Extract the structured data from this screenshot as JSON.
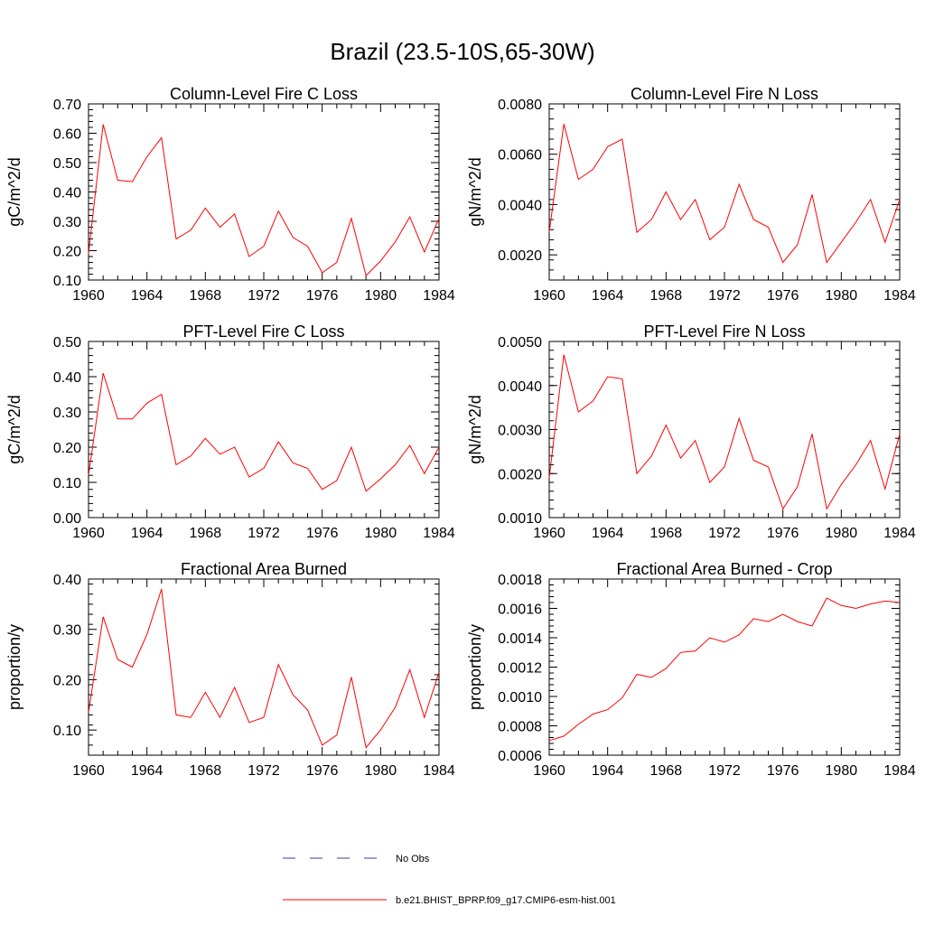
{
  "figure_title": "Brazil (23.5-10S,65-30W)",
  "legend": {
    "items": [
      {
        "label": "No Obs",
        "color": "#3a3aa8",
        "style": "dashed"
      },
      {
        "label": "b.e21.BHIST_BPRP.f09_g17.CMIP6-esm-hist.001",
        "color": "#ff0000",
        "style": "solid"
      }
    ]
  },
  "chart_data": [
    {
      "type": "line",
      "title": "Column-Level Fire C Loss",
      "ylabel": "gC/m^2/d",
      "xlim": [
        1960,
        1984
      ],
      "ylim": [
        0.1,
        0.7
      ],
      "xticks": [
        "1960",
        "1964",
        "1968",
        "1972",
        "1976",
        "1980",
        "1984"
      ],
      "yticks": [
        "0.10",
        "0.20",
        "0.30",
        "0.40",
        "0.50",
        "0.60",
        "0.70"
      ],
      "x": [
        1960,
        1961,
        1962,
        1963,
        1964,
        1965,
        1966,
        1967,
        1968,
        1969,
        1970,
        1971,
        1972,
        1973,
        1974,
        1975,
        1976,
        1977,
        1978,
        1979,
        1980,
        1981,
        1982,
        1983,
        1984
      ],
      "series": [
        {
          "name": "b.e21.BHIST_BPRP.f09_g17.CMIP6-esm-hist.001",
          "color": "#ff0000",
          "values": [
            0.19,
            0.63,
            0.44,
            0.435,
            0.52,
            0.585,
            0.24,
            0.27,
            0.345,
            0.28,
            0.325,
            0.18,
            0.215,
            0.335,
            0.245,
            0.215,
            0.125,
            0.16,
            0.31,
            0.115,
            0.165,
            0.23,
            0.315,
            0.195,
            0.31
          ]
        }
      ]
    },
    {
      "type": "line",
      "title": "Column-Level Fire N Loss",
      "ylabel": "gN/m^2/d",
      "xlim": [
        1960,
        1984
      ],
      "ylim": [
        0.001,
        0.008
      ],
      "xticks": [
        "1960",
        "1964",
        "1968",
        "1972",
        "1976",
        "1980",
        "1984"
      ],
      "yticks": [
        "0.0020",
        "0.0040",
        "0.0060",
        "0.0080"
      ],
      "x": [
        1960,
        1961,
        1962,
        1963,
        1964,
        1965,
        1966,
        1967,
        1968,
        1969,
        1970,
        1971,
        1972,
        1973,
        1974,
        1975,
        1976,
        1977,
        1978,
        1979,
        1980,
        1981,
        1982,
        1983,
        1984
      ],
      "series": [
        {
          "name": "b.e21.BHIST_BPRP.f09_g17.CMIP6-esm-hist.001",
          "color": "#ff0000",
          "values": [
            0.0029,
            0.0072,
            0.005,
            0.0054,
            0.0063,
            0.0066,
            0.0029,
            0.0034,
            0.0045,
            0.0034,
            0.0042,
            0.0026,
            0.0031,
            0.0048,
            0.0034,
            0.0031,
            0.0017,
            0.0024,
            0.0044,
            0.0017,
            0.0025,
            0.0033,
            0.0042,
            0.0025,
            0.0042
          ]
        }
      ]
    },
    {
      "type": "line",
      "title": "PFT-Level Fire C Loss",
      "ylabel": "gC/m^2/d",
      "xlim": [
        1960,
        1984
      ],
      "ylim": [
        0.0,
        0.5
      ],
      "xticks": [
        "1960",
        "1964",
        "1968",
        "1972",
        "1976",
        "1980",
        "1984"
      ],
      "yticks": [
        "0.00",
        "0.10",
        "0.20",
        "0.30",
        "0.40",
        "0.50"
      ],
      "x": [
        1960,
        1961,
        1962,
        1963,
        1964,
        1965,
        1966,
        1967,
        1968,
        1969,
        1970,
        1971,
        1972,
        1973,
        1974,
        1975,
        1976,
        1977,
        1978,
        1979,
        1980,
        1981,
        1982,
        1983,
        1984
      ],
      "series": [
        {
          "name": "b.e21.BHIST_BPRP.f09_g17.CMIP6-esm-hist.001",
          "color": "#ff0000",
          "values": [
            0.12,
            0.41,
            0.28,
            0.28,
            0.325,
            0.35,
            0.15,
            0.175,
            0.225,
            0.18,
            0.2,
            0.115,
            0.14,
            0.215,
            0.155,
            0.14,
            0.08,
            0.105,
            0.2,
            0.075,
            0.11,
            0.15,
            0.205,
            0.125,
            0.2
          ]
        }
      ]
    },
    {
      "type": "line",
      "title": "PFT-Level Fire N Loss",
      "ylabel": "gN/m^2/d",
      "xlim": [
        1960,
        1984
      ],
      "ylim": [
        0.001,
        0.005
      ],
      "xticks": [
        "1960",
        "1964",
        "1968",
        "1972",
        "1976",
        "1980",
        "1984"
      ],
      "yticks": [
        "0.0010",
        "0.0020",
        "0.0030",
        "0.0040",
        "0.0050"
      ],
      "x": [
        1960,
        1961,
        1962,
        1963,
        1964,
        1965,
        1966,
        1967,
        1968,
        1969,
        1970,
        1971,
        1972,
        1973,
        1974,
        1975,
        1976,
        1977,
        1978,
        1979,
        1980,
        1981,
        1982,
        1983,
        1984
      ],
      "series": [
        {
          "name": "b.e21.BHIST_BPRP.f09_g17.CMIP6-esm-hist.001",
          "color": "#ff0000",
          "values": [
            0.0019,
            0.0047,
            0.0034,
            0.00365,
            0.0042,
            0.00415,
            0.002,
            0.0024,
            0.0031,
            0.00235,
            0.00275,
            0.0018,
            0.00215,
            0.00325,
            0.0023,
            0.00215,
            0.0012,
            0.0017,
            0.0029,
            0.0012,
            0.00175,
            0.0022,
            0.00275,
            0.00165,
            0.0029
          ]
        }
      ]
    },
    {
      "type": "line",
      "title": "Fractional Area Burned",
      "ylabel": "proportion/y",
      "xlim": [
        1960,
        1984
      ],
      "ylim": [
        0.05,
        0.4
      ],
      "xticks": [
        "1960",
        "1964",
        "1968",
        "1972",
        "1976",
        "1980",
        "1984"
      ],
      "yticks": [
        "0.10",
        "0.20",
        "0.30",
        "0.40"
      ],
      "x": [
        1960,
        1961,
        1962,
        1963,
        1964,
        1965,
        1966,
        1967,
        1968,
        1969,
        1970,
        1971,
        1972,
        1973,
        1974,
        1975,
        1976,
        1977,
        1978,
        1979,
        1980,
        1981,
        1982,
        1983,
        1984
      ],
      "series": [
        {
          "name": "b.e21.BHIST_BPRP.f09_g17.CMIP6-esm-hist.001",
          "color": "#ff0000",
          "values": [
            0.135,
            0.325,
            0.24,
            0.225,
            0.29,
            0.38,
            0.13,
            0.125,
            0.175,
            0.125,
            0.185,
            0.115,
            0.125,
            0.23,
            0.17,
            0.14,
            0.07,
            0.09,
            0.205,
            0.065,
            0.1,
            0.145,
            0.22,
            0.125,
            0.215
          ]
        }
      ]
    },
    {
      "type": "line",
      "title": "Fractional Area Burned - Crop",
      "ylabel": "proportion/y",
      "xlim": [
        1960,
        1984
      ],
      "ylim": [
        0.0006,
        0.0018
      ],
      "xticks": [
        "1960",
        "1964",
        "1968",
        "1972",
        "1976",
        "1980",
        "1984"
      ],
      "yticks": [
        "0.0006",
        "0.0008",
        "0.0010",
        "0.0012",
        "0.0014",
        "0.0016",
        "0.0018"
      ],
      "x": [
        1960,
        1961,
        1962,
        1963,
        1964,
        1965,
        1966,
        1967,
        1968,
        1969,
        1970,
        1971,
        1972,
        1973,
        1974,
        1975,
        1976,
        1977,
        1978,
        1979,
        1980,
        1981,
        1982,
        1983,
        1984
      ],
      "series": [
        {
          "name": "b.e21.BHIST_BPRP.f09_g17.CMIP6-esm-hist.001",
          "color": "#ff0000",
          "values": [
            0.0007,
            0.00073,
            0.00081,
            0.00088,
            0.00091,
            0.00099,
            0.00115,
            0.00113,
            0.00119,
            0.0013,
            0.00131,
            0.0014,
            0.00137,
            0.00142,
            0.00153,
            0.00151,
            0.00156,
            0.00151,
            0.00148,
            0.00167,
            0.00162,
            0.0016,
            0.00163,
            0.00165,
            0.00164
          ]
        }
      ]
    }
  ]
}
